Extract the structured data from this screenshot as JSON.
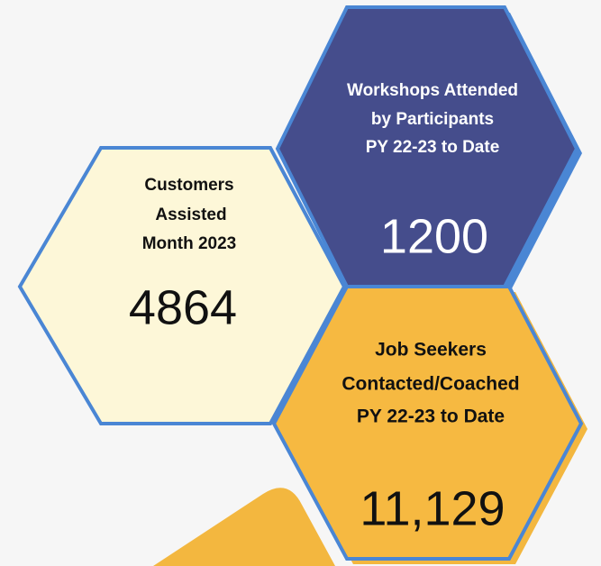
{
  "hexagons": [
    {
      "label": [
        "Customers",
        "Assisted",
        "Month 2023"
      ],
      "value": "4864"
    },
    {
      "label": [
        "Workshops Attended",
        "by Participants",
        "PY 22-23 to Date"
      ],
      "value": "1200"
    },
    {
      "label": [
        "Job Seekers",
        "Contacted/Coached",
        "PY 22-23 to Date"
      ],
      "value": "11,129"
    }
  ]
}
